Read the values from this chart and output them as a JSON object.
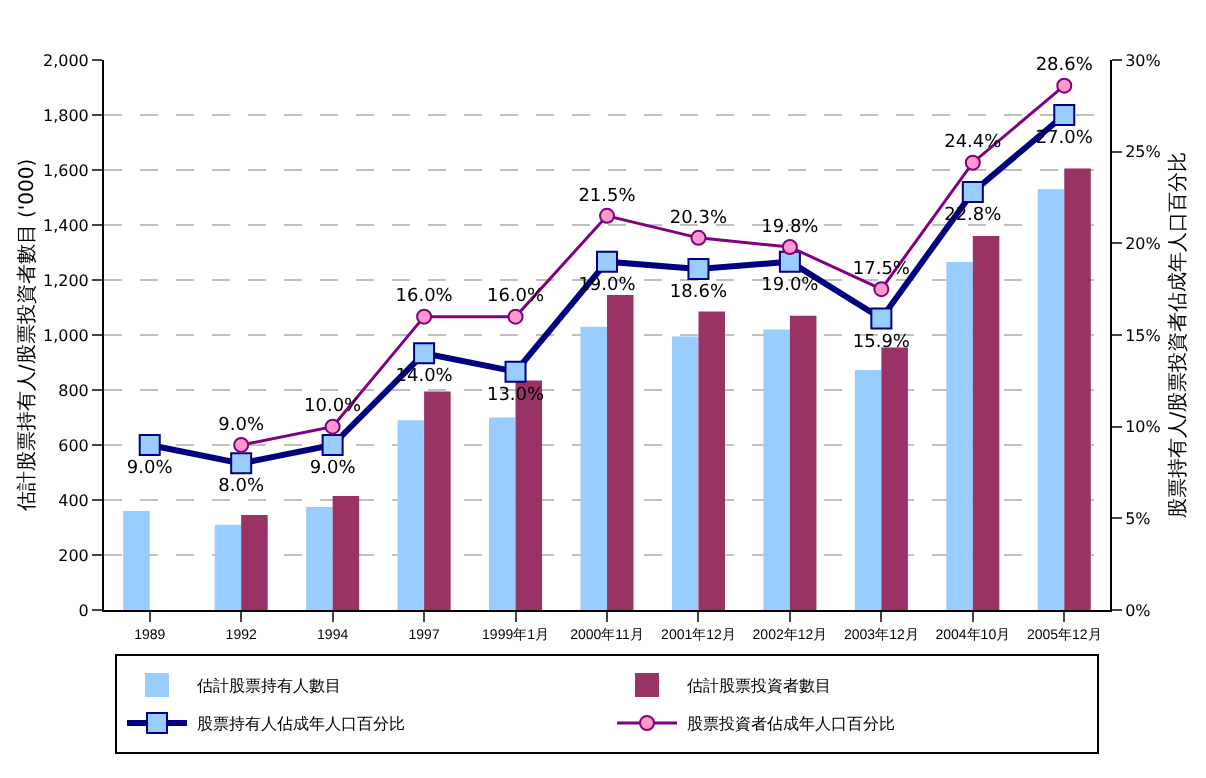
{
  "chart_data": {
    "type": "bar",
    "ylabel": "估計股票持有人/股票投資者數目 ('000)",
    "y2label": "股票持有人/股票投資者佔成年人口百分比",
    "categories": [
      "1989",
      "1992",
      "1994",
      "1997",
      "1999年1月",
      "2000年11月",
      "2001年12月",
      "2002年12月",
      "2003年12月",
      "2004年10月",
      "2005年12月"
    ],
    "series": [
      {
        "name": "估計股票持有人數目",
        "color": "#99ccff",
        "values": [
          360,
          310,
          375,
          690,
          700,
          1030,
          995,
          1020,
          873,
          1265,
          1530
        ]
      },
      {
        "name": "估計股票投資者數目",
        "color": "#993366",
        "values": [
          null,
          345,
          415,
          795,
          835,
          1145,
          1085,
          1070,
          955,
          1360,
          1605
        ]
      },
      {
        "name": "股票持有人佔成年人口百分比",
        "type": "line",
        "axis": "y2",
        "color": "#000080",
        "marker": "square",
        "values": [
          9.0,
          8.0,
          9.0,
          14.0,
          13.0,
          19.0,
          18.6,
          19.0,
          15.9,
          22.8,
          27.0
        ],
        "value_labels": [
          "9.0%",
          "8.0%",
          "9.0%",
          "14.0%",
          "13.0%",
          "19.0%",
          "18.6%",
          "19.0%",
          "15.9%",
          "22.8%",
          "27.0%"
        ]
      },
      {
        "name": "股票投資者佔成年人口百分比",
        "type": "line",
        "axis": "y2",
        "color": "#800080",
        "marker": "circle",
        "values": [
          null,
          9.0,
          10.0,
          16.0,
          16.0,
          21.5,
          20.3,
          19.8,
          17.5,
          24.4,
          28.6
        ],
        "value_labels": [
          null,
          "9.0%",
          "10.0%",
          "16.0%",
          "16.0%",
          "21.5%",
          "20.3%",
          "19.8%",
          "17.5%",
          "24.4%",
          "28.6%"
        ]
      }
    ],
    "ylim": [
      0,
      2000
    ],
    "yticks": [
      0,
      200,
      400,
      600,
      800,
      {
        "value": 1000,
        "label": "1,000"
      },
      {
        "value": 1200,
        "label": "1,200"
      },
      {
        "value": 1400,
        "label": "1,400"
      },
      {
        "value": 1600,
        "label": "1,600"
      },
      {
        "value": 1800,
        "label": "1,800"
      },
      {
        "value": 2000,
        "label": "2,000"
      }
    ],
    "y2lim": [
      0,
      30
    ],
    "y2ticks": [
      {
        "value": 0,
        "label": "0%"
      },
      {
        "value": 5,
        "label": "5%"
      },
      {
        "value": 10,
        "label": "10%"
      },
      {
        "value": 15,
        "label": "15%"
      },
      {
        "value": 20,
        "label": "20%"
      },
      {
        "value": 25,
        "label": "25%"
      },
      {
        "value": 30,
        "label": "30%"
      }
    ],
    "grid": "y",
    "legend": "bottom"
  }
}
